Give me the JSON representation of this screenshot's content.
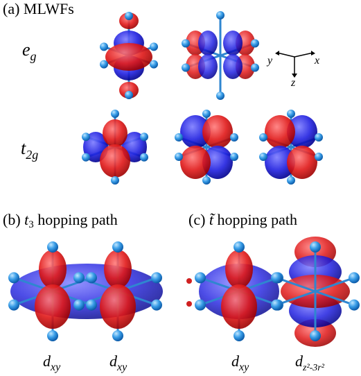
{
  "panel_a": {
    "label": "(a) MLWFs",
    "rows": [
      {
        "symbol": "e",
        "subscript": "g"
      },
      {
        "symbol": "t",
        "subscript": "2g"
      }
    ],
    "axes": {
      "x": "x",
      "y": "y",
      "z": "z"
    }
  },
  "panel_b": {
    "prefix": "(b)",
    "symbol": "t",
    "subscript": "3",
    "suffix": "hopping path",
    "orbitals": [
      {
        "symbol": "d",
        "subscript": "xy"
      },
      {
        "symbol": "d",
        "subscript": "xy"
      }
    ]
  },
  "panel_c": {
    "prefix": "(c)",
    "symbol": "t̃",
    "suffix": "hopping path",
    "orbitals": [
      {
        "symbol": "d",
        "subscript": "xy"
      },
      {
        "symbol": "d",
        "subscript": "z²-3r²"
      }
    ]
  }
}
